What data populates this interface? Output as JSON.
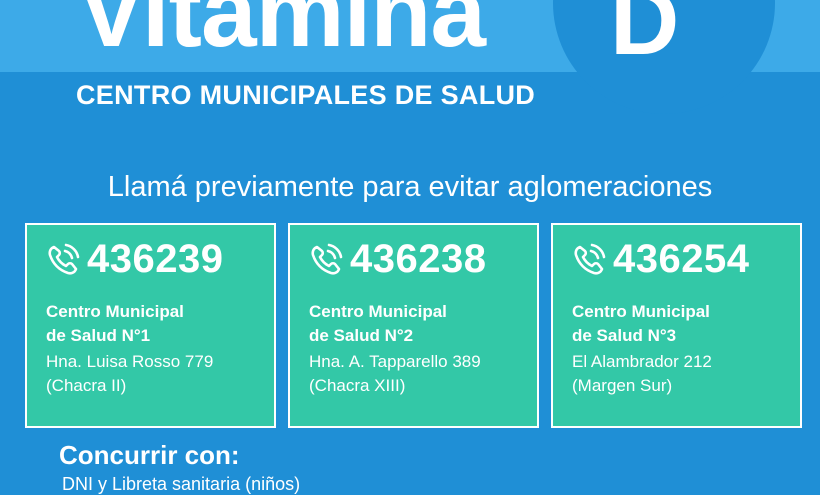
{
  "header": {
    "title": "Vitamina",
    "letter": "D",
    "subtitle": "CENTRO MUNICIPALES DE SALUD"
  },
  "notice": "Llamá previamente para evitar aglomeraciones",
  "centers": [
    {
      "phone": "436239",
      "name_line1": "Centro Municipal",
      "name_line2": "de Salud N°1",
      "address_line1": "Hna. Luisa Rosso 779",
      "address_line2": "(Chacra II)"
    },
    {
      "phone": "436238",
      "name_line1": "Centro Municipal",
      "name_line2": "de Salud N°2",
      "address_line1": "Hna. A. Tapparello 389",
      "address_line2": "(Chacra XIII)"
    },
    {
      "phone": "436254",
      "name_line1": "Centro Municipal",
      "name_line2": "de Salud N°3",
      "address_line1": "El Alambrador 212",
      "address_line2": "(Margen Sur)"
    }
  ],
  "footer": {
    "title": "Concurrir con:",
    "line": "DNI y Libreta sanitaria (niños)"
  },
  "icons": {
    "phone": "phone-ringing-icon"
  },
  "colors": {
    "background": "#1f8fd6",
    "band": "#3daae8",
    "card": "#33c8a7",
    "text": "#ffffff"
  }
}
